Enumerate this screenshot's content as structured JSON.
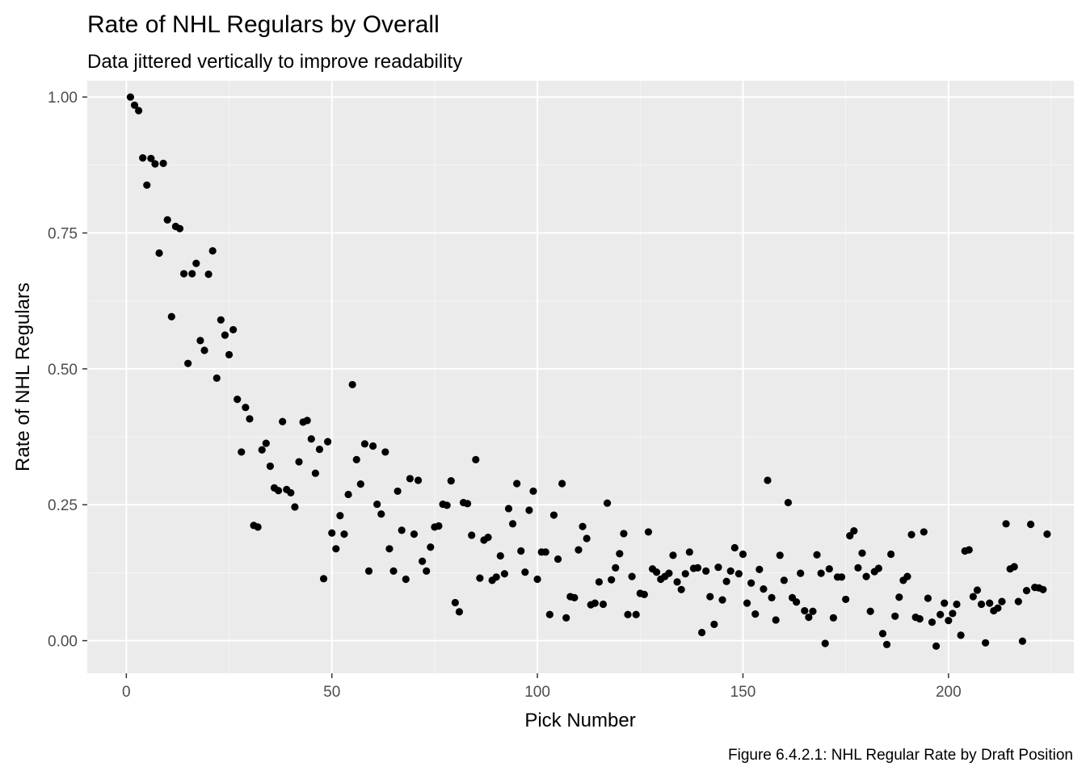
{
  "chart_data": {
    "type": "scatter",
    "title": "Rate of NHL Regulars by Overall",
    "subtitle": "Data jittered vertically to improve readability",
    "xlabel": "Pick Number",
    "ylabel": "Rate of NHL Regulars",
    "caption": "Figure 6.4.2.1: NHL Regular Rate by Draft Position",
    "xlim": [
      -9.5,
      230.5
    ],
    "ylim": [
      -0.06,
      1.03
    ],
    "x_ticks": [
      0,
      50,
      100,
      150,
      200
    ],
    "x_tick_labels": [
      "0",
      "50",
      "100",
      "150",
      "200"
    ],
    "y_ticks": [
      0,
      0.25,
      0.5,
      0.75,
      1.0
    ],
    "y_tick_labels": [
      "0.00",
      "0.25",
      "0.50",
      "0.75",
      "1.00"
    ],
    "grid": true,
    "legend": "none",
    "colors": {
      "panel_background": "#ebebeb",
      "grid_major": "#ffffff",
      "grid_minor": "#f5f5f5",
      "point": "#000000",
      "tick_label": "#4d4d4d"
    },
    "points": {
      "x": [
        1,
        2,
        3,
        4,
        5,
        6,
        7,
        8,
        9,
        10,
        11,
        12,
        13,
        14,
        15,
        16,
        17,
        18,
        19,
        20,
        21,
        22,
        23,
        24,
        25,
        26,
        27,
        28,
        29,
        30,
        31,
        32,
        33,
        34,
        35,
        36,
        37,
        38,
        39,
        40,
        41,
        42,
        43,
        44,
        45,
        46,
        47,
        48,
        49,
        50,
        51,
        52,
        53,
        54,
        55,
        56,
        57,
        58,
        59,
        60,
        61,
        62,
        63,
        64,
        65,
        66,
        67,
        68,
        69,
        70,
        71,
        72,
        73,
        74,
        75,
        76,
        77,
        78,
        79,
        80,
        81,
        82,
        83,
        84,
        85,
        86,
        87,
        88,
        89,
        90,
        91,
        92,
        93,
        94,
        95,
        96,
        97,
        98,
        99,
        100,
        101,
        102,
        103,
        104,
        105,
        106,
        107,
        108,
        109,
        110,
        111,
        112,
        113,
        114,
        115,
        116,
        117,
        118,
        119,
        120,
        121,
        122,
        123,
        124,
        125,
        126,
        127,
        128,
        129,
        130,
        131,
        132,
        133,
        134,
        135,
        136,
        137,
        138,
        139,
        140,
        141,
        142,
        143,
        144,
        145,
        146,
        147,
        148,
        149,
        150,
        151,
        152,
        153,
        154,
        155,
        156,
        157,
        158,
        159,
        160,
        161,
        162,
        163,
        164,
        165,
        166,
        167,
        168,
        169,
        170,
        171,
        172,
        173,
        174,
        175,
        176,
        177,
        178,
        179,
        180,
        181,
        182,
        183,
        184,
        185,
        186,
        187,
        188,
        189,
        190,
        191,
        192,
        193,
        194,
        195,
        196,
        197,
        198,
        199,
        200,
        201,
        202,
        203,
        204,
        205,
        206,
        207,
        208,
        209,
        210,
        211,
        212,
        213,
        214,
        215,
        216,
        217,
        218,
        219,
        220,
        221,
        222,
        223,
        224
      ],
      "y": [
        1.0,
        0.985,
        0.975,
        0.888,
        0.838,
        0.887,
        0.877,
        0.713,
        0.878,
        0.774,
        0.596,
        0.762,
        0.758,
        0.675,
        0.51,
        0.675,
        0.694,
        0.552,
        0.534,
        0.674,
        0.717,
        0.483,
        0.59,
        0.562,
        0.526,
        0.572,
        0.444,
        0.347,
        0.429,
        0.408,
        0.212,
        0.209,
        0.351,
        0.363,
        0.321,
        0.281,
        0.276,
        0.403,
        0.278,
        0.272,
        0.246,
        0.329,
        0.402,
        0.405,
        0.371,
        0.308,
        0.352,
        0.114,
        0.366,
        0.198,
        0.169,
        0.23,
        0.196,
        0.269,
        0.471,
        0.333,
        0.288,
        0.362,
        0.128,
        0.358,
        0.251,
        0.233,
        0.347,
        0.169,
        0.128,
        0.275,
        0.203,
        0.113,
        0.298,
        0.196,
        0.295,
        0.146,
        0.128,
        0.172,
        0.209,
        0.211,
        0.251,
        0.249,
        0.294,
        0.07,
        0.053,
        0.254,
        0.252,
        0.194,
        0.333,
        0.115,
        0.185,
        0.19,
        0.111,
        0.117,
        0.156,
        0.123,
        0.243,
        0.215,
        0.289,
        0.165,
        0.126,
        0.24,
        0.275,
        0.113,
        0.163,
        0.163,
        0.048,
        0.231,
        0.15,
        0.289,
        0.042,
        0.081,
        0.079,
        0.167,
        0.21,
        0.188,
        0.066,
        0.069,
        0.108,
        0.067,
        0.253,
        0.112,
        0.134,
        0.16,
        0.197,
        0.048,
        0.118,
        0.048,
        0.087,
        0.085,
        0.2,
        0.132,
        0.126,
        0.113,
        0.118,
        0.124,
        0.157,
        0.108,
        0.094,
        0.123,
        0.163,
        0.133,
        0.134,
        0.015,
        0.128,
        0.081,
        0.03,
        0.135,
        0.075,
        0.109,
        0.128,
        0.171,
        0.123,
        0.159,
        0.069,
        0.106,
        0.049,
        0.131,
        0.095,
        0.295,
        0.079,
        0.038,
        0.157,
        0.111,
        0.254,
        0.079,
        0.071,
        0.124,
        0.055,
        0.043,
        0.054,
        0.158,
        0.124,
        -0.005,
        0.132,
        0.042,
        0.117,
        0.117,
        0.076,
        0.193,
        0.202,
        0.134,
        0.161,
        0.118,
        0.054,
        0.127,
        0.133,
        0.013,
        -0.007,
        0.159,
        0.045,
        0.08,
        0.111,
        0.118,
        0.195,
        0.043,
        0.04,
        0.2,
        0.078,
        0.034,
        -0.01,
        0.048,
        0.069,
        0.037,
        0.05,
        0.067,
        0.01,
        0.165,
        0.167,
        0.081,
        0.093,
        0.067,
        -0.004,
        0.069,
        0.055,
        0.06,
        0.072,
        0.215,
        0.132,
        0.136,
        0.072,
        -0.001,
        0.092,
        0.214,
        0.098,
        0.097,
        0.094,
        0.196
      ]
    }
  }
}
